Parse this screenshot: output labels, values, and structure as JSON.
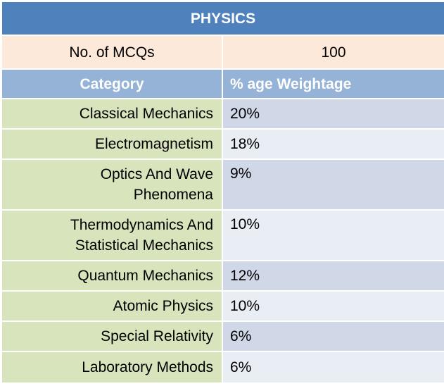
{
  "title": "PHYSICS",
  "mcq_row": {
    "label": "No. of MCQs",
    "value": "100"
  },
  "header": {
    "category": "Category",
    "weightage": "% age Weightage"
  },
  "rows": [
    {
      "category": "Classical Mechanics",
      "weightage": "20%"
    },
    {
      "category": "Electromagnetism",
      "weightage": "18%"
    },
    {
      "category": "Optics And Wave Phenomena",
      "weightage": "9%"
    },
    {
      "category": "Thermodynamics And Statistical Mechanics",
      "weightage": "10%"
    },
    {
      "category": "Quantum Mechanics",
      "weightage": "12%"
    },
    {
      "category": "Atomic Physics",
      "weightage": "10%"
    },
    {
      "category": "Special Relativity",
      "weightage": "6%"
    },
    {
      "category": "Laboratory Methods",
      "weightage": "6%"
    }
  ],
  "colors": {
    "title_bg": "#4f81bd",
    "count_bg": "#fde9d9",
    "header_bg": "#95b3d7",
    "category_bg": "#d8e4bc",
    "value_bg_odd": "#d0d8e8",
    "value_bg_even": "#e9edf4"
  }
}
